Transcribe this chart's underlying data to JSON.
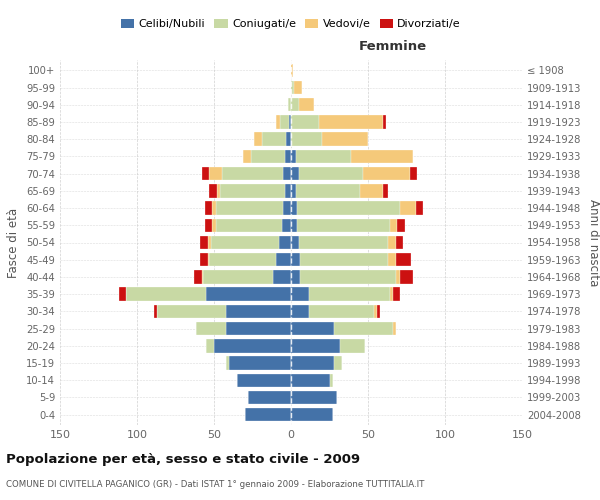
{
  "age_groups": [
    "0-4",
    "5-9",
    "10-14",
    "15-19",
    "20-24",
    "25-29",
    "30-34",
    "35-39",
    "40-44",
    "45-49",
    "50-54",
    "55-59",
    "60-64",
    "65-69",
    "70-74",
    "75-79",
    "80-84",
    "85-89",
    "90-94",
    "95-99",
    "100+"
  ],
  "birth_years": [
    "2004-2008",
    "1999-2003",
    "1994-1998",
    "1989-1993",
    "1984-1988",
    "1979-1983",
    "1974-1978",
    "1969-1973",
    "1964-1968",
    "1959-1963",
    "1954-1958",
    "1949-1953",
    "1944-1948",
    "1939-1943",
    "1934-1938",
    "1929-1933",
    "1924-1928",
    "1919-1923",
    "1914-1918",
    "1909-1913",
    "≤ 1908"
  ],
  "male": {
    "celibi": [
      30,
      28,
      35,
      40,
      50,
      42,
      42,
      55,
      12,
      10,
      8,
      6,
      5,
      4,
      5,
      4,
      3,
      1,
      0,
      0,
      0
    ],
    "coniugati": [
      0,
      0,
      0,
      2,
      5,
      20,
      45,
      52,
      45,
      43,
      44,
      43,
      44,
      42,
      40,
      22,
      16,
      6,
      2,
      0,
      0
    ],
    "vedovi": [
      0,
      0,
      0,
      0,
      0,
      0,
      0,
      0,
      1,
      1,
      2,
      2,
      2,
      2,
      8,
      5,
      5,
      3,
      0,
      0,
      0
    ],
    "divorziati": [
      0,
      0,
      0,
      0,
      0,
      0,
      2,
      5,
      5,
      5,
      5,
      5,
      5,
      5,
      5,
      0,
      0,
      0,
      0,
      0,
      0
    ]
  },
  "female": {
    "nubili": [
      27,
      30,
      25,
      28,
      32,
      28,
      12,
      12,
      6,
      6,
      5,
      4,
      4,
      3,
      5,
      3,
      0,
      0,
      0,
      0,
      0
    ],
    "coniugate": [
      0,
      0,
      2,
      5,
      16,
      38,
      42,
      52,
      62,
      57,
      58,
      60,
      67,
      42,
      42,
      36,
      20,
      18,
      5,
      2,
      0
    ],
    "vedove": [
      0,
      0,
      0,
      0,
      0,
      2,
      2,
      2,
      3,
      5,
      5,
      5,
      10,
      15,
      30,
      40,
      30,
      42,
      10,
      5,
      1
    ],
    "divorziate": [
      0,
      0,
      0,
      0,
      0,
      0,
      2,
      5,
      8,
      10,
      5,
      5,
      5,
      3,
      5,
      0,
      0,
      2,
      0,
      0,
      0
    ]
  },
  "colors": {
    "celibi": "#4472A8",
    "coniugati": "#C8D9A4",
    "vedovi": "#F5C97A",
    "divorziati": "#CC1111"
  },
  "title": "Popolazione per età, sesso e stato civile - 2009",
  "subtitle": "COMUNE DI CIVITELLA PAGANICO (GR) - Dati ISTAT 1° gennaio 2009 - Elaborazione TUTTITALIA.IT",
  "xlabel_right": "Femmine",
  "ylabel_left": "Fasce di età",
  "ylabel_right": "Anni di nascita",
  "xlim": 150,
  "bg_color": "#FFFFFF",
  "plot_bg": "#FFFFFF",
  "grid_color": "#CCCCCC",
  "legend_labels": [
    "Celibi/Nubili",
    "Coniugati/e",
    "Vedovi/e",
    "Divorziati/e"
  ]
}
